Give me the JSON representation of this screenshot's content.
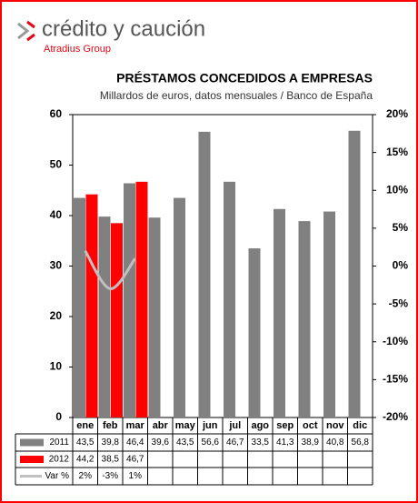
{
  "logo": {
    "name": "crédito y caución",
    "group": "Atradius Group"
  },
  "chart_data": {
    "type": "bar",
    "title": "PRÉSTAMOS CONCEDIDOS A EMPRESAS",
    "subtitle": "Millardos de euros, datos mensuales / Banco de España",
    "categories": [
      "ene",
      "feb",
      "mar",
      "abr",
      "may",
      "jun",
      "jul",
      "ago",
      "sep",
      "oct",
      "nov",
      "dic"
    ],
    "series": [
      {
        "name": "2011",
        "color": "#808080",
        "type": "bar",
        "values": [
          43.5,
          39.8,
          46.4,
          39.6,
          43.5,
          56.6,
          46.7,
          33.5,
          41.3,
          38.9,
          40.8,
          56.8
        ],
        "value_labels": [
          "43,5",
          "39,8",
          "46,4",
          "39,6",
          "43,5",
          "56,6",
          "46,7",
          "33,5",
          "41,3",
          "38,9",
          "40,8",
          "56,8"
        ]
      },
      {
        "name": "2012",
        "color": "#ff0000",
        "type": "bar",
        "values": [
          44.2,
          38.5,
          46.7,
          null,
          null,
          null,
          null,
          null,
          null,
          null,
          null,
          null
        ],
        "value_labels": [
          "44,2",
          "38,5",
          "46,7",
          null,
          null,
          null,
          null,
          null,
          null,
          null,
          null,
          null
        ]
      },
      {
        "name": "Var %",
        "color": "#c0c0c0",
        "type": "line",
        "axis": "y2",
        "values": [
          2,
          -3,
          1,
          null,
          null,
          null,
          null,
          null,
          null,
          null,
          null,
          null
        ],
        "value_labels": [
          "2%",
          "-3%",
          "1%",
          null,
          null,
          null,
          null,
          null,
          null,
          null,
          null,
          null
        ]
      }
    ],
    "ylim": [
      0,
      60
    ],
    "yticks": [
      0,
      10,
      20,
      30,
      40,
      50,
      60
    ],
    "y2lim": [
      -20,
      20
    ],
    "y2ticks": [
      {
        "value": -20,
        "label": "-20%"
      },
      {
        "value": -15,
        "label": "-15%"
      },
      {
        "value": -10,
        "label": "-10%"
      },
      {
        "value": -5,
        "label": "-5%"
      },
      {
        "value": 0,
        "label": "0%"
      },
      {
        "value": 5,
        "label": "5%"
      },
      {
        "value": 10,
        "label": "10%"
      },
      {
        "value": 15,
        "label": "15%"
      },
      {
        "value": 20,
        "label": "20%"
      }
    ],
    "grid": false
  }
}
